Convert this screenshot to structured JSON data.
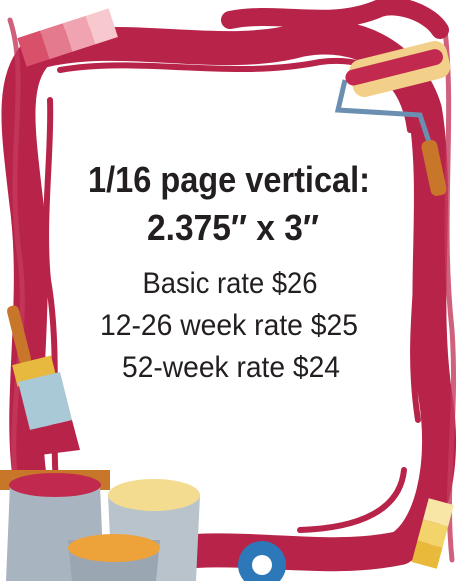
{
  "ad": {
    "title_line1": "1/16 page vertical:",
    "title_line2": "2.375″ x 3″",
    "rates": [
      "Basic rate $26",
      "12-26 week rate $25",
      "52-week rate $24"
    ]
  }
}
